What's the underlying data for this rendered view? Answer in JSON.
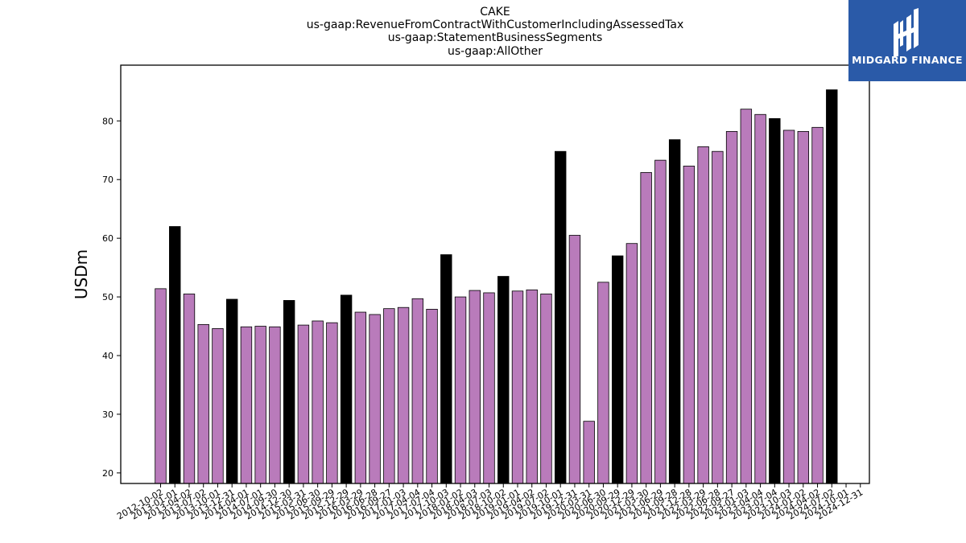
{
  "title_lines": [
    "CAKE",
    "us-gaap:RevenueFromContractWithCustomerIncludingAssessedTax",
    "us-gaap:StatementBusinessSegments",
    "us-gaap:AllOther"
  ],
  "logo": {
    "text": "MIDGARD FINANCE",
    "bg_color": "#2a5aa8"
  },
  "chart_data": {
    "type": "bar",
    "ylabel": "USDm",
    "xlabel": "",
    "ylim": [
      18.2,
      89.5
    ],
    "yticks": [
      20,
      30,
      40,
      50,
      60,
      70,
      80
    ],
    "grid": false,
    "legend": "none",
    "colors": {
      "quarter": "#b97bbb",
      "annual": "#000000",
      "edge": "#000000"
    },
    "categories": [
      "2012-10-02",
      "2013-01-01",
      "2013-04-02",
      "2013-07-02",
      "2013-10-01",
      "2013-12-31",
      "2014-04-01",
      "2014-07-01",
      "2014-09-30",
      "2014-12-30",
      "2015-03-31",
      "2015-06-30",
      "2015-09-29",
      "2015-12-29",
      "2016-03-29",
      "2016-06-28",
      "2016-09-27",
      "2017-01-03",
      "2017-04-04",
      "2017-07-04",
      "2017-10-03",
      "2018-01-02",
      "2018-04-03",
      "2018-07-03",
      "2018-10-02",
      "2019-01-01",
      "2019-04-02",
      "2019-07-02",
      "2019-10-01",
      "2019-12-31",
      "2020-03-31",
      "2020-06-30",
      "2020-09-29",
      "2020-12-29",
      "2021-03-30",
      "2021-06-29",
      "2021-09-28",
      "2021-12-28",
      "2022-03-29",
      "2022-06-28",
      "2022-09-27",
      "2023-01-03",
      "2023-04-04",
      "2023-07-04",
      "2023-10-03",
      "2024-01-02",
      "2024-04-02",
      "2024-07-02",
      "2024-10-01",
      "2024-12-31"
    ],
    "values": [
      51.4,
      62.0,
      50.5,
      45.3,
      44.6,
      49.6,
      44.9,
      45.0,
      44.9,
      49.4,
      45.2,
      45.9,
      45.6,
      50.3,
      47.4,
      47.0,
      48.0,
      48.2,
      49.7,
      47.9,
      57.2,
      50.0,
      51.1,
      50.7,
      53.5,
      51.0,
      51.2,
      50.5,
      74.8,
      60.5,
      28.8,
      52.5,
      57.0,
      59.1,
      71.2,
      73.3,
      76.8,
      72.3,
      75.6,
      74.8,
      78.2,
      82.0,
      81.1,
      80.4,
      78.4,
      78.2,
      78.9,
      85.3,
      null,
      null
    ],
    "annual": [
      false,
      true,
      false,
      false,
      false,
      true,
      false,
      false,
      false,
      true,
      false,
      false,
      false,
      true,
      false,
      false,
      false,
      false,
      false,
      false,
      true,
      false,
      false,
      false,
      true,
      false,
      false,
      false,
      true,
      false,
      false,
      false,
      true,
      false,
      false,
      false,
      true,
      false,
      false,
      false,
      false,
      false,
      false,
      true,
      false,
      false,
      false,
      true,
      false,
      false
    ]
  }
}
